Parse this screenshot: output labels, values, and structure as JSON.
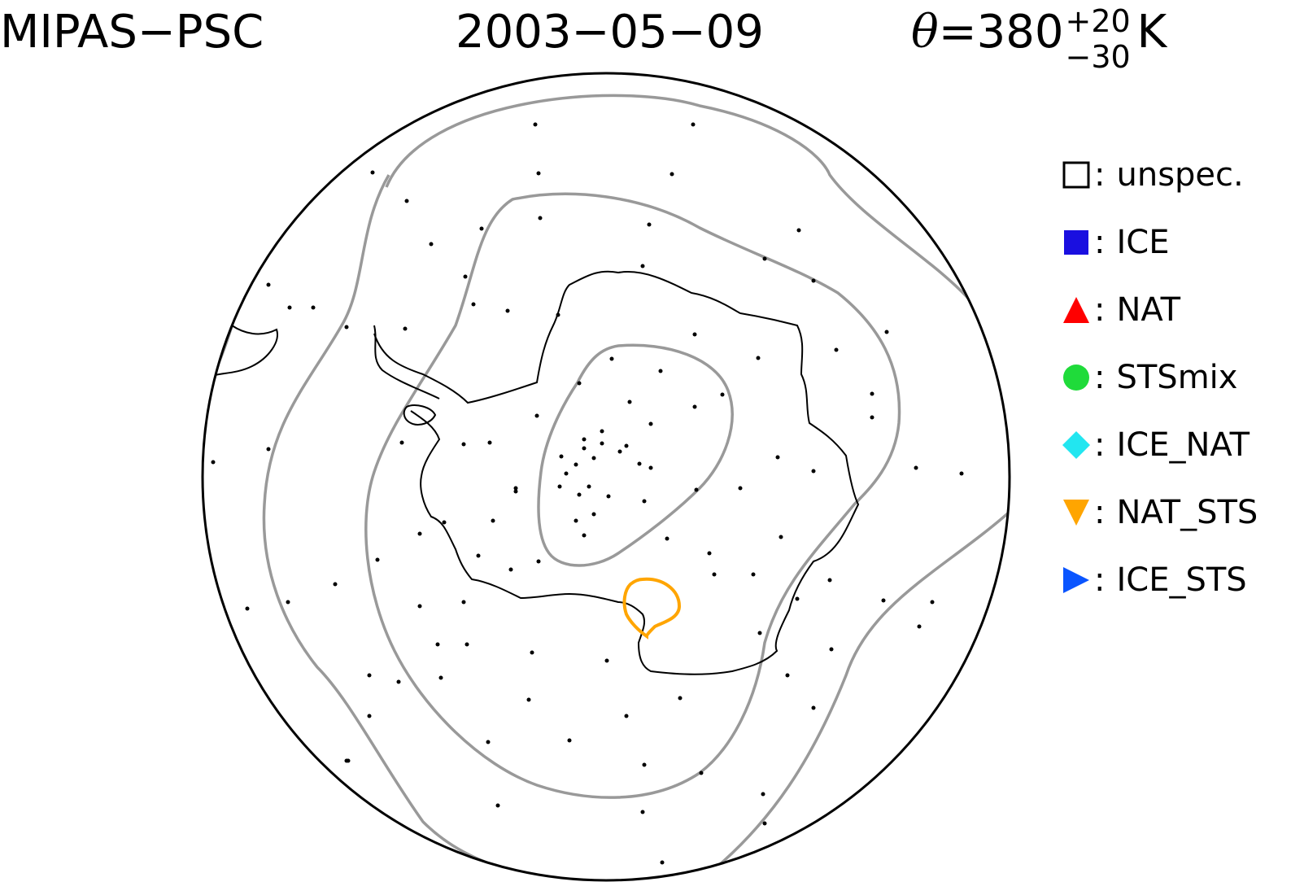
{
  "title": {
    "instrument": "MIPAS−PSC",
    "date": "2003−05−09",
    "theta_symbol": "θ",
    "theta_equals": "=380",
    "theta_sup": "+20",
    "theta_sub": "−30",
    "theta_unit": "K"
  },
  "legend": [
    {
      "label": "unspec.",
      "symbol": "open-square",
      "color": "#000000"
    },
    {
      "label": "ICE",
      "symbol": "filled-square",
      "color": "#1a0fe0"
    },
    {
      "label": "NAT",
      "symbol": "triangle-up",
      "color": "#ff0000"
    },
    {
      "label": "STSmix",
      "symbol": "circle",
      "color": "#1fdb3a"
    },
    {
      "label": "ICE_NAT",
      "symbol": "diamond",
      "color": "#22e6f0"
    },
    {
      "label": "NAT_STS",
      "symbol": "triangle-down",
      "color": "#ffa500"
    },
    {
      "label": "ICE_STS",
      "symbol": "triangle-right",
      "color": "#0a55ff"
    }
  ],
  "colors": {
    "contour": "#999999",
    "psc_contour": "#ffa500",
    "coastline": "#000000"
  },
  "map": {
    "projection": "south-polar-stereographic",
    "psc_detections": "none"
  }
}
